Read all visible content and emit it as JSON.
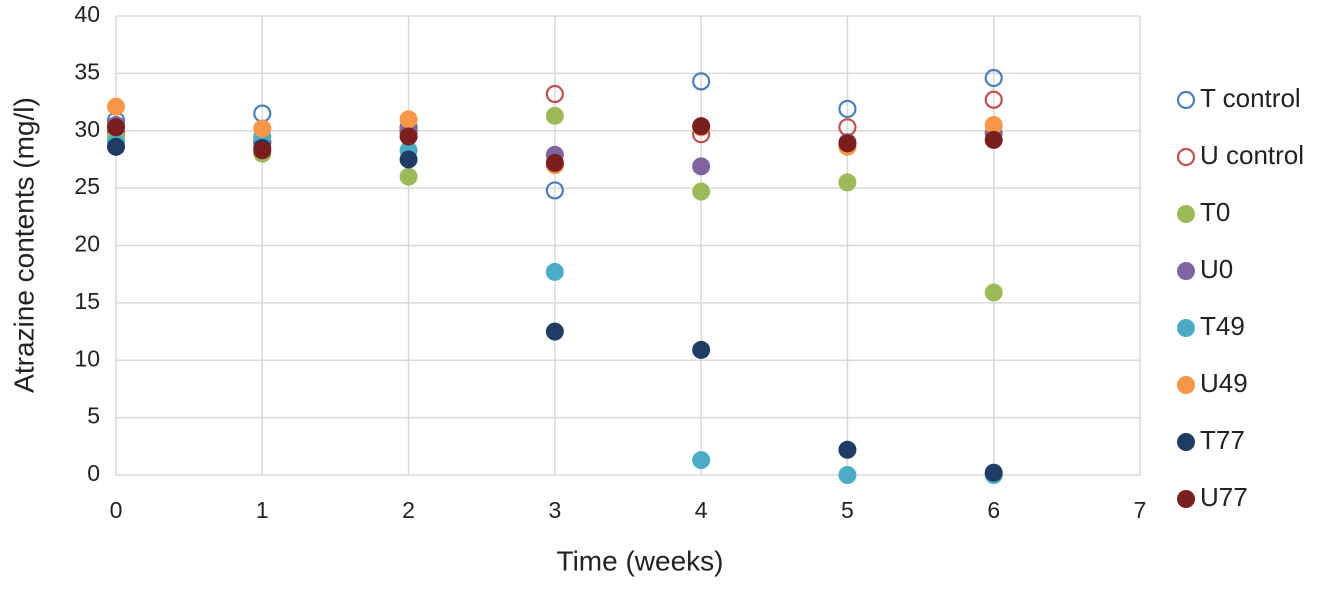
{
  "chart_data": {
    "type": "scatter",
    "x_label": "Time (weeks)",
    "y_label": "Atrazine contents  (mg/l)",
    "xlim": [
      0,
      7
    ],
    "xticks": [
      0,
      1,
      2,
      3,
      4,
      5,
      6,
      7
    ],
    "ylim": [
      0,
      40
    ],
    "yticks": [
      0,
      5,
      10,
      15,
      20,
      25,
      30,
      35,
      40
    ],
    "grid": true,
    "legend": "right",
    "x": [
      0,
      1,
      2,
      3,
      4,
      5,
      6
    ],
    "series": [
      {
        "name": "T control",
        "color": "#4a7ebb",
        "filled": false,
        "values": [
          30.9,
          31.5,
          30.3,
          24.8,
          34.3,
          31.9,
          34.6
        ]
      },
      {
        "name": "U control",
        "color": "#c0504d",
        "filled": false,
        "values": [
          29.8,
          29.0,
          30.0,
          33.2,
          29.7,
          30.3,
          32.7
        ]
      },
      {
        "name": "T0",
        "color": "#9bbb59",
        "filled": true,
        "values": [
          29.5,
          28.0,
          26.0,
          31.3,
          24.7,
          25.5,
          15.9
        ]
      },
      {
        "name": "U0",
        "color": "#8064a2",
        "filled": true,
        "values": [
          30.5,
          29.0,
          29.9,
          27.9,
          26.9,
          29.0,
          29.8
        ]
      },
      {
        "name": "T49",
        "color": "#4bacc6",
        "filled": true,
        "values": [
          29.0,
          29.5,
          28.3,
          17.7,
          1.3,
          0,
          0
        ]
      },
      {
        "name": "U49",
        "color": "#f79646",
        "filled": true,
        "values": [
          32.1,
          30.2,
          31.0,
          27.0,
          30.3,
          28.6,
          30.5
        ]
      },
      {
        "name": "T77",
        "color": "#1f3c64",
        "filled": true,
        "values": [
          28.6,
          28.5,
          27.5,
          12.5,
          10.9,
          2.2,
          0.2
        ]
      },
      {
        "name": "U77",
        "color": "#7b1e1e",
        "filled": true,
        "values": [
          30.3,
          28.3,
          29.5,
          27.2,
          30.4,
          28.9,
          29.2
        ]
      }
    ]
  }
}
